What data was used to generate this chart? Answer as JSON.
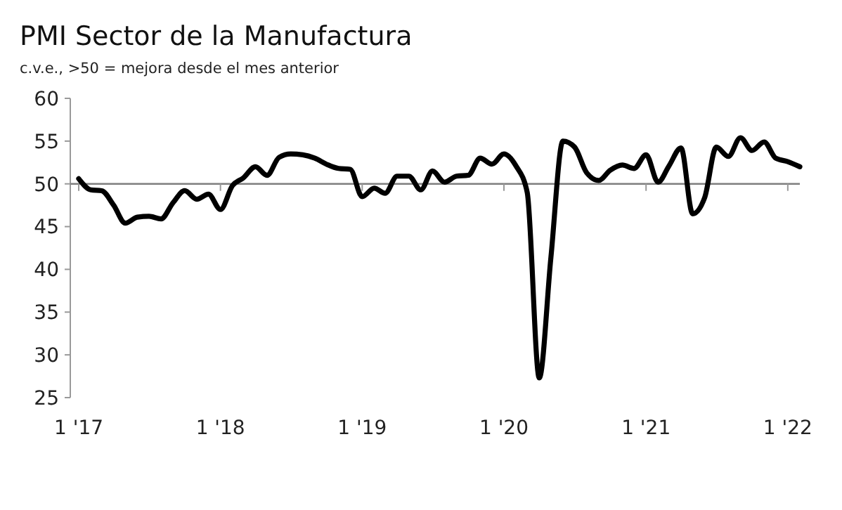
{
  "chart_data": {
    "type": "line",
    "title": "PMI Sector de la Manufactura",
    "subtitle": "c.v.e., >50 = mejora desde el mes anterior",
    "x": [
      "2017-01",
      "2017-02",
      "2017-03",
      "2017-04",
      "2017-05",
      "2017-06",
      "2017-07",
      "2017-08",
      "2017-09",
      "2017-10",
      "2017-11",
      "2017-12",
      "2018-01",
      "2018-02",
      "2018-03",
      "2018-04",
      "2018-05",
      "2018-06",
      "2018-07",
      "2018-08",
      "2018-09",
      "2018-10",
      "2018-11",
      "2018-12",
      "2019-01",
      "2019-02",
      "2019-03",
      "2019-04",
      "2019-05",
      "2019-06",
      "2019-07",
      "2019-08",
      "2019-09",
      "2019-10",
      "2019-11",
      "2019-12",
      "2020-01",
      "2020-02",
      "2020-03",
      "2020-04",
      "2020-05",
      "2020-06",
      "2020-07",
      "2020-08",
      "2020-09",
      "2020-10",
      "2020-11",
      "2020-12",
      "2021-01",
      "2021-02",
      "2021-03",
      "2021-04",
      "2021-05",
      "2021-06",
      "2021-07",
      "2021-08",
      "2021-09",
      "2021-10",
      "2021-11",
      "2021-12",
      "2022-01",
      "2022-02"
    ],
    "series": [
      {
        "color": "#000000",
        "values": [
          50.6,
          49.3,
          49.2,
          47.5,
          45.4,
          46.1,
          46.2,
          45.9,
          47.8,
          49.2,
          48.2,
          48.8,
          47.0,
          49.8,
          50.7,
          52.0,
          51.0,
          53.1,
          53.5,
          53.4,
          53.0,
          52.3,
          51.8,
          51.7,
          48.5,
          49.5,
          48.9,
          50.9,
          50.9,
          49.3,
          51.5,
          50.2,
          50.9,
          51.0,
          53.0,
          52.3,
          53.5,
          52.1,
          49.0,
          27.3,
          41.4,
          55.0,
          54.3,
          51.3,
          50.4,
          51.6,
          52.2,
          51.8,
          53.4,
          50.2,
          52.1,
          54.2,
          46.5,
          48.4,
          54.3,
          53.2,
          55.4,
          53.9,
          54.9,
          53.0,
          52.6,
          52.0
        ]
      }
    ],
    "xlim": [
      "2017-01",
      "2022-02"
    ],
    "xticks": [
      {
        "value": "2017-01",
        "label": "1 '17"
      },
      {
        "value": "2018-01",
        "label": "1 '18"
      },
      {
        "value": "2019-01",
        "label": "1 '19"
      },
      {
        "value": "2020-01",
        "label": "1 '20"
      },
      {
        "value": "2021-01",
        "label": "1 '21"
      },
      {
        "value": "2022-01",
        "label": "1 '22"
      }
    ],
    "ylim": [
      25,
      60
    ],
    "yticks": [
      25,
      30,
      35,
      40,
      45,
      50,
      55,
      60
    ],
    "ref_lines": [
      {
        "axis": "y",
        "value": 50,
        "color": "#7f7f7f"
      }
    ],
    "grid": false,
    "line_style": "solid"
  }
}
